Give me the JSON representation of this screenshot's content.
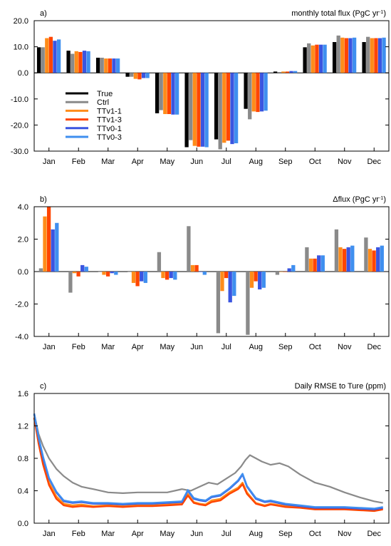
{
  "chart_data": [
    {
      "type": "bar",
      "panel_label": "a)",
      "title": "monthly total flux (PgC yr",
      "title_sup": "-1",
      "title_end": ")",
      "categories": [
        "Jan",
        "Feb",
        "Mar",
        "Apr",
        "May",
        "Jun",
        "Jul",
        "Aug",
        "Sep",
        "Oct",
        "Nov",
        "Dec"
      ],
      "ylim": [
        -30,
        20
      ],
      "yticks": [
        "20.0",
        "10.0",
        "0.0",
        "-10.0",
        "-20.0",
        "-30.0"
      ],
      "ytick_values": [
        20,
        10,
        0,
        -10,
        -20,
        -30
      ],
      "legend_position": "left",
      "series": [
        {
          "name": "True",
          "color": "#000000",
          "values": [
            9.8,
            8.5,
            5.8,
            -1.5,
            -15.5,
            -28.5,
            -25.5,
            -13.8,
            0.5,
            9.8,
            11.8,
            11.8
          ]
        },
        {
          "name": "Ctrl",
          "color": "#8a8a8a",
          "values": [
            9.8,
            7.3,
            5.8,
            -1.5,
            -14.3,
            -25.8,
            -29.3,
            -17.8,
            0.3,
            11.3,
            14.3,
            13.8
          ]
        },
        {
          "name": "TTv1-1",
          "color": "#ff8c1a",
          "values": [
            13.3,
            8.3,
            5.5,
            -2.3,
            -15.8,
            -28.0,
            -26.8,
            -14.8,
            0.5,
            10.5,
            13.5,
            13.3
          ]
        },
        {
          "name": "TTv1-3",
          "color": "#ff4500",
          "values": [
            13.8,
            8.0,
            5.5,
            -2.5,
            -15.8,
            -28.3,
            -26.0,
            -15.0,
            0.5,
            10.8,
            13.3,
            13.3
          ]
        },
        {
          "name": "TTv0-1",
          "color": "#3a55e0",
          "values": [
            12.3,
            8.5,
            5.5,
            -2.0,
            -16.0,
            -28.3,
            -27.3,
            -14.8,
            0.7,
            10.8,
            13.3,
            13.3
          ]
        },
        {
          "name": "TTv0-3",
          "color": "#3f8fef",
          "values": [
            12.8,
            8.3,
            5.5,
            -2.0,
            -16.0,
            -28.5,
            -27.0,
            -14.5,
            0.7,
            10.8,
            13.5,
            13.5
          ]
        }
      ]
    },
    {
      "type": "bar",
      "panel_label": "b)",
      "title": "Δflux (PgC yr",
      "title_sup": "-1",
      "title_end": ")",
      "categories": [
        "Jan",
        "Feb",
        "Mar",
        "Apr",
        "May",
        "Jun",
        "Jul",
        "Aug",
        "Sep",
        "Oct",
        "Nov",
        "Dec"
      ],
      "ylim": [
        -4,
        4
      ],
      "yticks": [
        "4.0",
        "2.0",
        "0.0",
        "-2.0",
        "-4.0"
      ],
      "ytick_values": [
        4,
        2,
        0,
        -2,
        -4
      ],
      "series": [
        {
          "name": "Ctrl",
          "color": "#8a8a8a",
          "values": [
            0.2,
            -1.3,
            0.0,
            0.0,
            1.2,
            2.8,
            -3.8,
            -3.9,
            -0.2,
            1.5,
            2.6,
            2.1
          ]
        },
        {
          "name": "TTv1-1",
          "color": "#ff8c1a",
          "values": [
            3.4,
            -0.1,
            -0.2,
            -0.7,
            -0.4,
            0.4,
            -1.2,
            -1.0,
            0.0,
            0.8,
            1.5,
            1.4
          ]
        },
        {
          "name": "TTv1-3",
          "color": "#ff4500",
          "values": [
            4.0,
            -0.3,
            -0.3,
            -0.9,
            -0.5,
            0.4,
            -0.4,
            -0.6,
            0.0,
            0.8,
            1.4,
            1.3
          ]
        },
        {
          "name": "TTv0-1",
          "color": "#3a55e0",
          "values": [
            2.6,
            0.4,
            -0.1,
            -0.6,
            -0.4,
            0.0,
            -1.9,
            -1.1,
            0.2,
            1.0,
            1.5,
            1.5
          ]
        },
        {
          "name": "TTv0-3",
          "color": "#3f8fef",
          "values": [
            3.0,
            0.3,
            -0.2,
            -0.7,
            -0.5,
            -0.2,
            -1.5,
            -1.0,
            0.4,
            1.0,
            1.6,
            1.6
          ]
        }
      ]
    },
    {
      "type": "line",
      "panel_label": "c)",
      "title": "Daily RMSE to Ture (ppm)",
      "categories": [
        "Jan",
        "Feb",
        "Mar",
        "Apr",
        "May",
        "Jun",
        "Jul",
        "Aug",
        "Sep",
        "Oct",
        "Nov",
        "Dec"
      ],
      "ylim": [
        0,
        1.6
      ],
      "yticks": [
        "1.6",
        "1.2",
        "0.8",
        "0.4",
        "0.0"
      ],
      "ytick_values": [
        1.6,
        1.2,
        0.8,
        0.4,
        0.0
      ],
      "x_unit": "month",
      "series": [
        {
          "name": "Ctrl",
          "color": "#8a8a8a",
          "x": [
            0,
            0.15,
            0.3,
            0.5,
            0.75,
            1.0,
            1.3,
            1.6,
            2.0,
            2.5,
            3.0,
            3.5,
            4.0,
            4.5,
            5.0,
            5.3,
            5.6,
            5.9,
            6.2,
            6.5,
            6.8,
            7.0,
            7.15,
            7.3,
            7.5,
            7.7,
            8.0,
            8.3,
            8.6,
            9.0,
            9.5,
            10.0,
            10.5,
            11.0,
            11.5,
            11.8
          ],
          "y": [
            1.35,
            1.1,
            0.95,
            0.8,
            0.67,
            0.58,
            0.5,
            0.45,
            0.42,
            0.38,
            0.37,
            0.38,
            0.38,
            0.38,
            0.42,
            0.4,
            0.45,
            0.5,
            0.48,
            0.55,
            0.62,
            0.7,
            0.78,
            0.84,
            0.8,
            0.76,
            0.72,
            0.74,
            0.7,
            0.6,
            0.5,
            0.45,
            0.38,
            0.32,
            0.27,
            0.25
          ]
        },
        {
          "name": "TTv1-1",
          "color": "#ff8c1a",
          "x": [
            0,
            0.15,
            0.3,
            0.5,
            0.75,
            1.0,
            1.3,
            1.6,
            2.0,
            2.5,
            3.0,
            3.5,
            4.0,
            4.5,
            5.0,
            5.2,
            5.4,
            5.6,
            5.8,
            6.0,
            6.3,
            6.6,
            6.9,
            7.05,
            7.2,
            7.5,
            7.8,
            8.0,
            8.5,
            9.0,
            9.5,
            10.0,
            10.5,
            11.0,
            11.5,
            11.8
          ],
          "y": [
            1.3,
            1.0,
            0.75,
            0.5,
            0.33,
            0.24,
            0.22,
            0.23,
            0.21,
            0.22,
            0.21,
            0.22,
            0.22,
            0.23,
            0.24,
            0.36,
            0.26,
            0.24,
            0.23,
            0.28,
            0.3,
            0.38,
            0.44,
            0.5,
            0.38,
            0.25,
            0.22,
            0.24,
            0.21,
            0.2,
            0.18,
            0.18,
            0.18,
            0.17,
            0.16,
            0.18
          ]
        },
        {
          "name": "TTv1-3",
          "color": "#ff4500",
          "x": [
            0,
            0.15,
            0.3,
            0.5,
            0.75,
            1.0,
            1.3,
            1.6,
            2.0,
            2.5,
            3.0,
            3.5,
            4.0,
            4.5,
            5.0,
            5.2,
            5.4,
            5.6,
            5.8,
            6.0,
            6.3,
            6.6,
            6.9,
            7.05,
            7.2,
            7.5,
            7.8,
            8.0,
            8.5,
            9.0,
            9.5,
            10.0,
            10.5,
            11.0,
            11.5,
            11.8
          ],
          "y": [
            1.3,
            0.98,
            0.72,
            0.47,
            0.3,
            0.22,
            0.2,
            0.21,
            0.2,
            0.21,
            0.2,
            0.21,
            0.21,
            0.22,
            0.23,
            0.34,
            0.25,
            0.23,
            0.22,
            0.26,
            0.28,
            0.36,
            0.42,
            0.48,
            0.36,
            0.24,
            0.21,
            0.23,
            0.2,
            0.19,
            0.17,
            0.17,
            0.17,
            0.16,
            0.15,
            0.17
          ]
        },
        {
          "name": "TTv0-1",
          "color": "#3a55e0",
          "x": [
            0,
            0.15,
            0.3,
            0.5,
            0.75,
            1.0,
            1.3,
            1.6,
            2.0,
            2.5,
            3.0,
            3.5,
            4.0,
            4.5,
            5.0,
            5.2,
            5.4,
            5.6,
            5.8,
            6.0,
            6.3,
            6.6,
            6.9,
            7.05,
            7.2,
            7.5,
            7.8,
            8.0,
            8.5,
            9.0,
            9.5,
            10.0,
            10.5,
            11.0,
            11.5,
            11.8
          ],
          "y": [
            1.35,
            1.05,
            0.8,
            0.55,
            0.38,
            0.27,
            0.25,
            0.26,
            0.24,
            0.24,
            0.23,
            0.24,
            0.24,
            0.25,
            0.26,
            0.4,
            0.3,
            0.28,
            0.27,
            0.32,
            0.34,
            0.42,
            0.52,
            0.6,
            0.45,
            0.3,
            0.26,
            0.27,
            0.23,
            0.21,
            0.19,
            0.19,
            0.19,
            0.18,
            0.17,
            0.19
          ]
        },
        {
          "name": "TTv0-3",
          "color": "#3f8fef",
          "x": [
            0,
            0.15,
            0.3,
            0.5,
            0.75,
            1.0,
            1.3,
            1.6,
            2.0,
            2.5,
            3.0,
            3.5,
            4.0,
            4.5,
            5.0,
            5.2,
            5.4,
            5.6,
            5.8,
            6.0,
            6.3,
            6.6,
            6.9,
            7.05,
            7.2,
            7.5,
            7.8,
            8.0,
            8.5,
            9.0,
            9.5,
            10.0,
            10.5,
            11.0,
            11.5,
            11.8
          ],
          "y": [
            1.35,
            1.06,
            0.82,
            0.56,
            0.39,
            0.28,
            0.26,
            0.27,
            0.25,
            0.25,
            0.24,
            0.25,
            0.25,
            0.26,
            0.27,
            0.41,
            0.31,
            0.29,
            0.28,
            0.33,
            0.35,
            0.43,
            0.53,
            0.61,
            0.46,
            0.31,
            0.27,
            0.28,
            0.24,
            0.22,
            0.2,
            0.2,
            0.2,
            0.19,
            0.18,
            0.2
          ]
        }
      ]
    }
  ]
}
